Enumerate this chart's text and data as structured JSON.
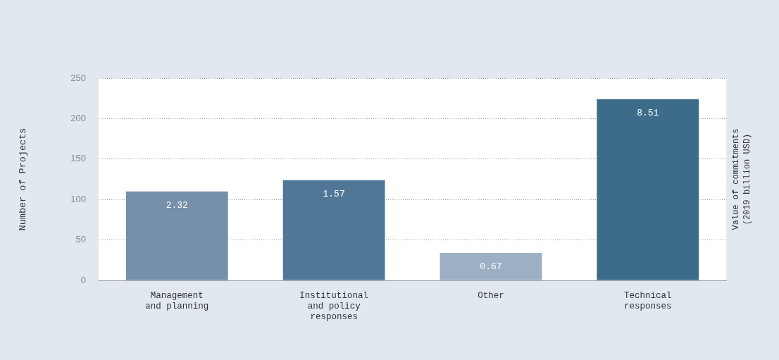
{
  "chart_data": {
    "type": "bar",
    "ylabel": "Number of Projects",
    "y2label": "Value of commitments\n(2019 billion USD)",
    "categories": [
      "Management and planning",
      "Institutional and policy responses",
      "Other",
      "Technical responses"
    ],
    "values": [
      110,
      124,
      34,
      224
    ],
    "colors": [
      "#7590a8",
      "#517797",
      "#9cafc3",
      "#3d6c8b"
    ],
    "annotations": [
      {
        "text": "2.32",
        "x": "Management and planning",
        "y": 110
      },
      {
        "text": "1.57",
        "x": "Institutional and policy responses",
        "y": 124
      },
      {
        "text": "0.67",
        "x": "Other",
        "y": 34
      },
      {
        "text": "8.51",
        "x": "Technical responses",
        "y": 224
      }
    ],
    "ylim": [
      0,
      250
    ],
    "yticks": [
      0,
      50,
      100,
      150,
      200,
      250
    ],
    "grid": "y",
    "legend": false
  }
}
